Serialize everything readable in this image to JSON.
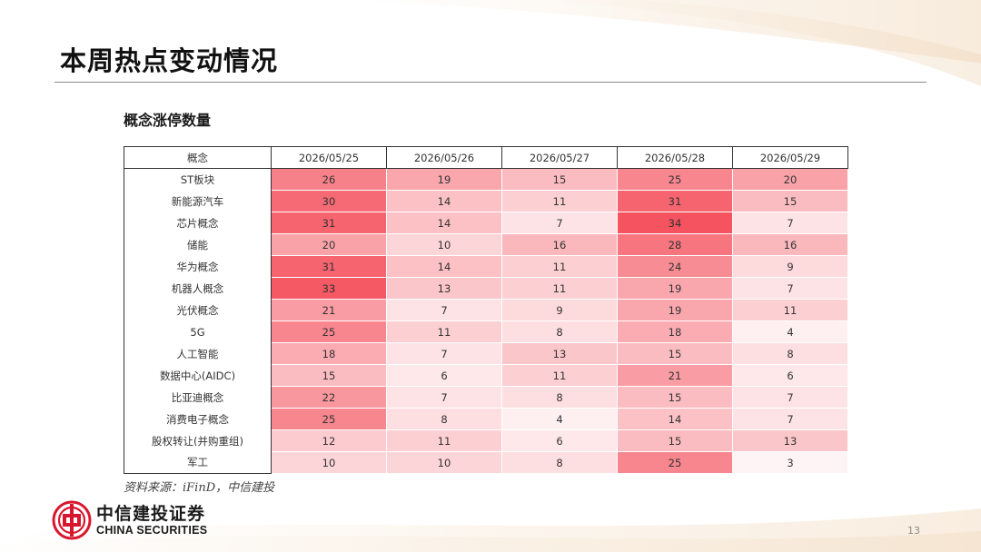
{
  "header": {
    "title": "本周热点变动情况"
  },
  "section": {
    "subtitle": "概念涨停数量"
  },
  "chart_data": {
    "type": "heatmap",
    "title": "概念涨停数量",
    "row_header": "概念",
    "columns": [
      "2026/05/25",
      "2026/05/26",
      "2026/05/27",
      "2026/05/28",
      "2026/05/29"
    ],
    "rows": [
      {
        "name": "ST板块",
        "values": [
          26,
          19,
          15,
          25,
          20
        ]
      },
      {
        "name": "新能源汽车",
        "values": [
          30,
          14,
          11,
          31,
          15
        ]
      },
      {
        "name": "芯片概念",
        "values": [
          31,
          14,
          7,
          34,
          7
        ]
      },
      {
        "name": "储能",
        "values": [
          20,
          10,
          16,
          28,
          16
        ]
      },
      {
        "name": "华为概念",
        "values": [
          31,
          14,
          11,
          24,
          9
        ]
      },
      {
        "name": "机器人概念",
        "values": [
          33,
          13,
          11,
          19,
          7
        ]
      },
      {
        "name": "光伏概念",
        "values": [
          21,
          7,
          9,
          19,
          11
        ]
      },
      {
        "name": "5G",
        "values": [
          25,
          11,
          8,
          18,
          4
        ]
      },
      {
        "name": "人工智能",
        "values": [
          18,
          7,
          13,
          15,
          8
        ]
      },
      {
        "name": "数据中心(AIDC)",
        "values": [
          15,
          6,
          11,
          21,
          6
        ]
      },
      {
        "name": "比亚迪概念",
        "values": [
          22,
          7,
          8,
          15,
          7
        ]
      },
      {
        "name": "消费电子概念",
        "values": [
          25,
          8,
          4,
          14,
          7
        ]
      },
      {
        "name": "股权转让(并购重组)",
        "values": [
          12,
          11,
          6,
          15,
          13
        ]
      },
      {
        "name": "军工",
        "values": [
          10,
          10,
          8,
          25,
          3
        ]
      }
    ],
    "color_low": "#ffffff",
    "color_high": "#f4535f"
  },
  "footer": {
    "source": "资料来源：iFinD，中信建投",
    "logo_cn": "中信建投证券",
    "logo_en": "CHINA SECURITIES",
    "page_number": "13"
  },
  "colors": {
    "brand_red": "#d7172f",
    "accent": "#f4535f"
  }
}
